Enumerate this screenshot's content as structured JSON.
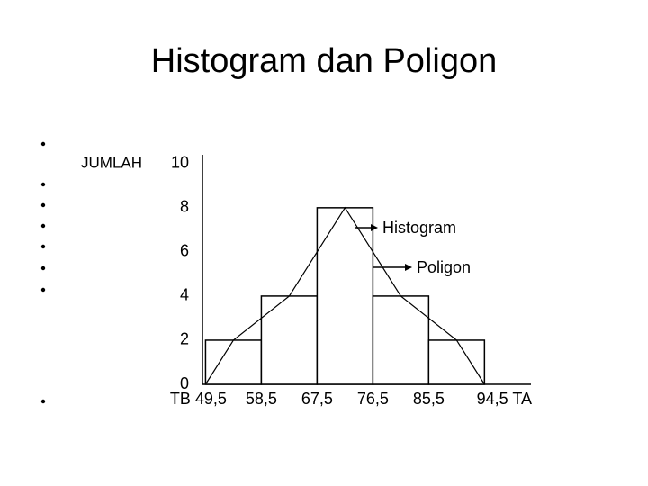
{
  "chart_data": {
    "type": "histogram",
    "title": "Histogram dan Poligon",
    "ylabel": "JUMLAH",
    "bins": [
      49.5,
      58.5,
      67.5,
      76.5,
      85.5,
      94.5
    ],
    "values": [
      2,
      4,
      8,
      4,
      2
    ],
    "color": "#ffffff",
    "polygon": {
      "x": [
        49.5,
        54,
        63,
        72,
        81,
        90,
        94.5
      ],
      "values": [
        0,
        2,
        4,
        8,
        4,
        2,
        0
      ],
      "color": "#000000"
    },
    "xlim": [
      49,
      102
    ],
    "ylim": [
      0,
      10.4
    ],
    "xticks": [
      {
        "value": 49.5,
        "label": "TB 49,5"
      },
      {
        "value": 58.5,
        "label": "58,5"
      },
      {
        "value": 67.5,
        "label": "67,5"
      },
      {
        "value": 76.5,
        "label": "76,5"
      },
      {
        "value": 85.5,
        "label": "85,5"
      },
      {
        "value": 94.5,
        "label": "94,5 TA"
      }
    ],
    "yticks": [
      0,
      2,
      4,
      6,
      8,
      10
    ],
    "annotations": [
      "Histogram",
      "Poligon"
    ]
  }
}
